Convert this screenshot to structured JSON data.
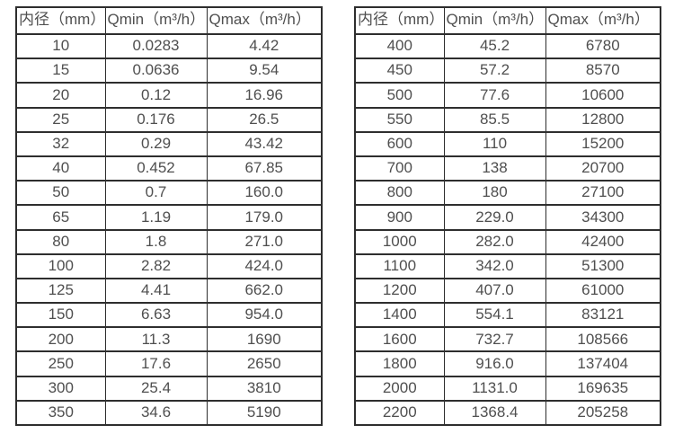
{
  "page": {
    "background": "#ffffff",
    "text_color": "#4f4f4f",
    "border_color": "#2e2e2e"
  },
  "tables": [
    {
      "name": "small-diameter-flow-table",
      "headers": [
        "内径（mm）",
        "Qmin（m³/h）",
        "Qmax（m³/h）"
      ],
      "rows": [
        [
          "10",
          "0.0283",
          "4.42"
        ],
        [
          "15",
          "0.0636",
          "9.54"
        ],
        [
          "20",
          "0.12",
          "16.96"
        ],
        [
          "25",
          "0.176",
          "26.5"
        ],
        [
          "32",
          "0.29",
          "43.42"
        ],
        [
          "40",
          "0.452",
          "67.85"
        ],
        [
          "50",
          "0.7",
          "160.0"
        ],
        [
          "65",
          "1.19",
          "179.0"
        ],
        [
          "80",
          "1.8",
          "271.0"
        ],
        [
          "100",
          "2.82",
          "424.0"
        ],
        [
          "125",
          "4.41",
          "662.0"
        ],
        [
          "150",
          "6.63",
          "954.0"
        ],
        [
          "200",
          "11.3",
          "1690"
        ],
        [
          "250",
          "17.6",
          "2650"
        ],
        [
          "300",
          "25.4",
          "3810"
        ],
        [
          "350",
          "34.6",
          "5190"
        ]
      ]
    },
    {
      "name": "large-diameter-flow-table",
      "headers": [
        "内径（mm）",
        "Qmin（m³/h）",
        "Qmax（m³/h）"
      ],
      "rows": [
        [
          "400",
          "45.2",
          "6780"
        ],
        [
          "450",
          "57.2",
          "8570"
        ],
        [
          "500",
          "77.6",
          "10600"
        ],
        [
          "550",
          "85.5",
          "12800"
        ],
        [
          "600",
          "110",
          "15200"
        ],
        [
          "700",
          "138",
          "20700"
        ],
        [
          "800",
          "180",
          "27100"
        ],
        [
          "900",
          "229.0",
          "34300"
        ],
        [
          "1000",
          "282.0",
          "42400"
        ],
        [
          "1100",
          "342.0",
          "51300"
        ],
        [
          "1200",
          "407.0",
          "61000"
        ],
        [
          "1400",
          "554.1",
          "83121"
        ],
        [
          "1600",
          "732.7",
          "108566"
        ],
        [
          "1800",
          "916.0",
          "137404"
        ],
        [
          "2000",
          "1131.0",
          "169635"
        ],
        [
          "2200",
          "1368.4",
          "205258"
        ]
      ]
    }
  ]
}
